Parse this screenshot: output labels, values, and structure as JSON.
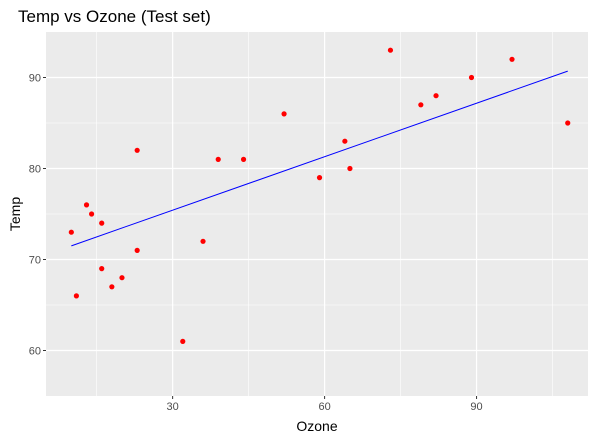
{
  "chart_data": {
    "type": "scatter",
    "title": "Temp vs Ozone (Test set)",
    "xlabel": "Ozone",
    "ylabel": "Temp",
    "xlim": [
      5,
      112
    ],
    "ylim": [
      55,
      95
    ],
    "xticks": [
      30,
      60,
      90
    ],
    "yticks": [
      60,
      70,
      80,
      90
    ],
    "xminor": [
      15,
      45,
      75,
      105
    ],
    "yminor": [
      65,
      75,
      85
    ],
    "grid": true,
    "panel_background": "#ebebeb",
    "grid_color": "#ffffff",
    "point_color": "#ff0000",
    "line_color": "#0000ff",
    "points": [
      {
        "x": 10,
        "y": 73
      },
      {
        "x": 11,
        "y": 66
      },
      {
        "x": 13,
        "y": 76
      },
      {
        "x": 14,
        "y": 75
      },
      {
        "x": 16,
        "y": 74
      },
      {
        "x": 16,
        "y": 69
      },
      {
        "x": 18,
        "y": 67
      },
      {
        "x": 20,
        "y": 68
      },
      {
        "x": 23,
        "y": 82
      },
      {
        "x": 23,
        "y": 71
      },
      {
        "x": 32,
        "y": 61
      },
      {
        "x": 36,
        "y": 72
      },
      {
        "x": 39,
        "y": 81
      },
      {
        "x": 44,
        "y": 81
      },
      {
        "x": 52,
        "y": 86
      },
      {
        "x": 59,
        "y": 79
      },
      {
        "x": 64,
        "y": 83
      },
      {
        "x": 65,
        "y": 80
      },
      {
        "x": 73,
        "y": 93
      },
      {
        "x": 79,
        "y": 87
      },
      {
        "x": 82,
        "y": 88
      },
      {
        "x": 89,
        "y": 90
      },
      {
        "x": 97,
        "y": 92
      },
      {
        "x": 108,
        "y": 85
      }
    ],
    "fit_line": {
      "x": [
        10,
        108
      ],
      "y": [
        71.5,
        90.7
      ]
    }
  }
}
